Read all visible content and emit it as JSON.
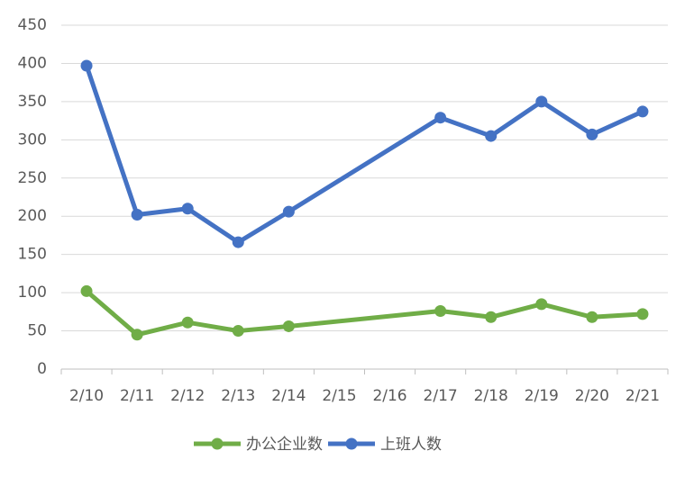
{
  "chart_data": {
    "type": "line",
    "categories": [
      "2/10",
      "2/11",
      "2/12",
      "2/13",
      "2/14",
      "2/15",
      "2/16",
      "2/17",
      "2/18",
      "2/19",
      "2/20",
      "2/21"
    ],
    "series": [
      {
        "name": "办公企业数",
        "color": "#70ad47",
        "values": [
          102,
          45,
          61,
          50,
          56,
          null,
          null,
          76,
          68,
          85,
          68,
          72
        ]
      },
      {
        "name": "上班人数",
        "color": "#4472c4",
        "values": [
          397,
          202,
          210,
          166,
          206,
          null,
          null,
          329,
          305,
          350,
          307,
          337
        ]
      }
    ],
    "ylim": [
      0,
      450
    ],
    "yticks": [
      0,
      50,
      100,
      150,
      200,
      250,
      300,
      350,
      400,
      450
    ],
    "grid": true,
    "legend": "bottom"
  }
}
